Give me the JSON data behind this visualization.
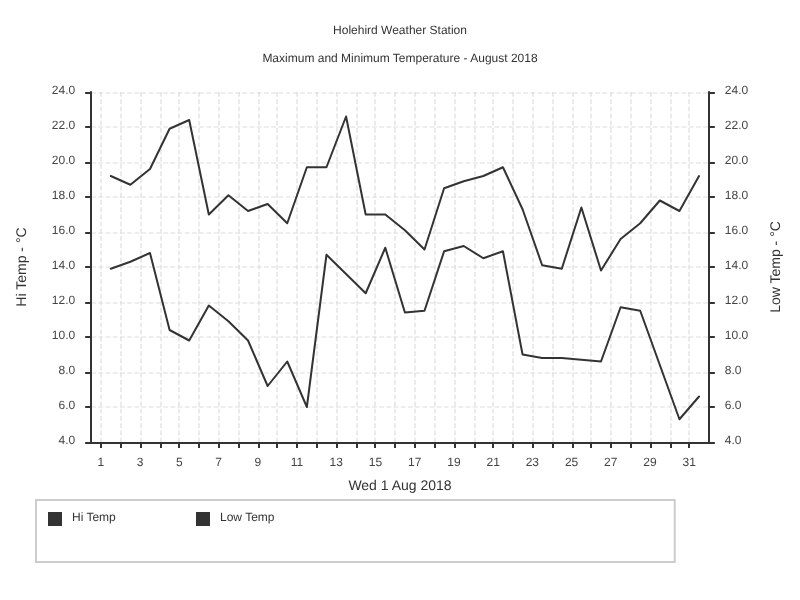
{
  "chart_data": {
    "type": "line",
    "title": "Holehird Weather Station",
    "subtitle": "Maximum and Minimum Temperature - August 2018",
    "xlabel": "Wed 1 Aug 2018",
    "ylabel": "Hi Temp - °C",
    "y2label": "Low Temp - °C",
    "x": [
      1.5,
      2.5,
      3.5,
      4.5,
      5.5,
      6.5,
      7.5,
      8.5,
      9.5,
      10.5,
      11.5,
      12.5,
      13.5,
      14.5,
      15.5,
      16.5,
      17.5,
      18.5,
      19.5,
      20.5,
      21.5,
      22.5,
      23.5,
      24.5,
      25.5,
      26.5,
      27.5,
      28.5,
      29.5,
      30.5,
      31.5
    ],
    "series": [
      {
        "name": "Hi Temp",
        "color": "#333333",
        "values": [
          19.2,
          18.7,
          19.6,
          21.9,
          22.4,
          17.0,
          18.1,
          17.2,
          17.6,
          16.5,
          19.7,
          19.7,
          22.6,
          17.0,
          17.0,
          16.1,
          15.0,
          18.5,
          18.9,
          19.2,
          19.7,
          17.3,
          14.1,
          13.9,
          17.4,
          13.8,
          15.6,
          16.5,
          17.8,
          17.2,
          19.2
        ]
      },
      {
        "name": "Low Temp",
        "color": "#333333",
        "axis": "y2",
        "values": [
          13.9,
          14.3,
          14.8,
          10.4,
          9.8,
          11.8,
          10.9,
          9.8,
          7.2,
          8.6,
          6.0,
          14.7,
          13.6,
          12.5,
          15.1,
          11.4,
          11.5,
          14.9,
          15.2,
          14.5,
          14.9,
          9.0,
          8.8,
          8.8,
          8.7,
          8.6,
          11.7,
          11.5,
          8.4,
          5.3,
          6.6
        ]
      }
    ],
    "xlim": [
      0.5,
      32
    ],
    "xticks": [
      1,
      {
        "value": 2,
        "label": null
      },
      3,
      {
        "value": 4,
        "label": null
      },
      5,
      {
        "value": 6,
        "label": null
      },
      7,
      {
        "value": 8,
        "label": null
      },
      9,
      {
        "value": 10,
        "label": null
      },
      11,
      {
        "value": 12,
        "label": null
      },
      13,
      {
        "value": 14,
        "label": null
      },
      15,
      {
        "value": 16,
        "label": null
      },
      17,
      {
        "value": 18,
        "label": null
      },
      19,
      {
        "value": 20,
        "label": null
      },
      21,
      {
        "value": 22,
        "label": null
      },
      23,
      {
        "value": 24,
        "label": null
      },
      25,
      {
        "value": 26,
        "label": null
      },
      27,
      {
        "value": 28,
        "label": null
      },
      29,
      {
        "value": 30,
        "label": null
      },
      31
    ],
    "ylim": [
      4,
      24
    ],
    "yticks": [
      {
        "value": 4,
        "label": "4.0"
      },
      {
        "value": 6,
        "label": "6.0"
      },
      {
        "value": 8,
        "label": "8.0"
      },
      {
        "value": 10,
        "label": "10.0"
      },
      {
        "value": 12,
        "label": "12.0"
      },
      {
        "value": 14,
        "label": "14.0"
      },
      {
        "value": 16,
        "label": "16.0"
      },
      {
        "value": 18,
        "label": "18.0"
      },
      {
        "value": 20,
        "label": "20.0"
      },
      {
        "value": 22,
        "label": "22.0"
      },
      {
        "value": 24,
        "label": "24.0"
      }
    ],
    "y2lim": [
      4,
      24
    ],
    "y2ticks": [
      {
        "value": 4,
        "label": "4.0"
      },
      {
        "value": 6,
        "label": "6.0"
      },
      {
        "value": 8,
        "label": "8.0"
      },
      {
        "value": 10,
        "label": "10.0"
      },
      {
        "value": 12,
        "label": "12.0"
      },
      {
        "value": 14,
        "label": "14.0"
      },
      {
        "value": 16,
        "label": "16.0"
      },
      {
        "value": 18,
        "label": "18.0"
      },
      {
        "value": 20,
        "label": "20.0"
      },
      {
        "value": 22,
        "label": "22.0"
      },
      {
        "value": 24,
        "label": "24.0"
      }
    ],
    "grid": true,
    "legend": "bottom",
    "marker": "none",
    "line_style": "solid"
  }
}
